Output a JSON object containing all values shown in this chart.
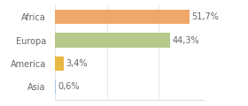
{
  "categories": [
    "Africa",
    "Europa",
    "America",
    "Asia"
  ],
  "values": [
    51.7,
    44.3,
    3.4,
    0.6
  ],
  "labels": [
    "51,7%",
    "44,3%",
    "3,4%",
    "0,6%"
  ],
  "bar_colors": [
    "#f0a868",
    "#b5c98a",
    "#e8b840",
    "#a8c8e8"
  ],
  "background_color": "#ffffff",
  "xlim": [
    0,
    57
  ],
  "bar_height": 0.62,
  "label_fontsize": 7.0,
  "tick_fontsize": 7.0,
  "text_color": "#666666",
  "grid_color": "#dddddd",
  "spine_color": "#cccccc"
}
